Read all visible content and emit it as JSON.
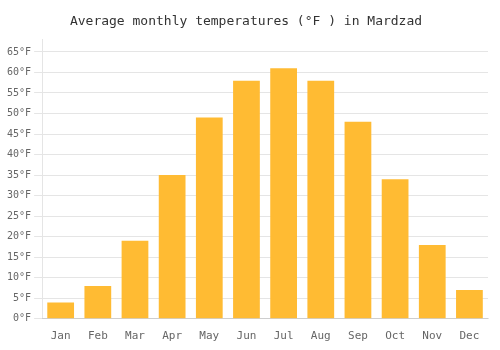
{
  "chart_data": {
    "type": "bar",
    "title": "Average monthly temperatures (°F ) in Mardzad",
    "categories": [
      "Jan",
      "Feb",
      "Mar",
      "Apr",
      "May",
      "Jun",
      "Jul",
      "Aug",
      "Sep",
      "Oct",
      "Nov",
      "Dec"
    ],
    "values": [
      4,
      8,
      19,
      35,
      49,
      58,
      61,
      58,
      48,
      34,
      18,
      7
    ],
    "color": "#FFBB33",
    "ylim": [
      0,
      68
    ],
    "yticks": [
      {
        "value": 0,
        "label": "0°F"
      },
      {
        "value": 5,
        "label": "5°F"
      },
      {
        "value": 10,
        "label": "10°F"
      },
      {
        "value": 15,
        "label": "15°F"
      },
      {
        "value": 20,
        "label": "20°F"
      },
      {
        "value": 25,
        "label": "25°F"
      },
      {
        "value": 30,
        "label": "30°F"
      },
      {
        "value": 35,
        "label": "35°F"
      },
      {
        "value": 40,
        "label": "40°F"
      },
      {
        "value": 45,
        "label": "45°F"
      },
      {
        "value": 50,
        "label": "50°F"
      },
      {
        "value": 55,
        "label": "55°F"
      },
      {
        "value": 60,
        "label": "60°F"
      },
      {
        "value": 65,
        "label": "65°F"
      }
    ],
    "grid": true
  }
}
